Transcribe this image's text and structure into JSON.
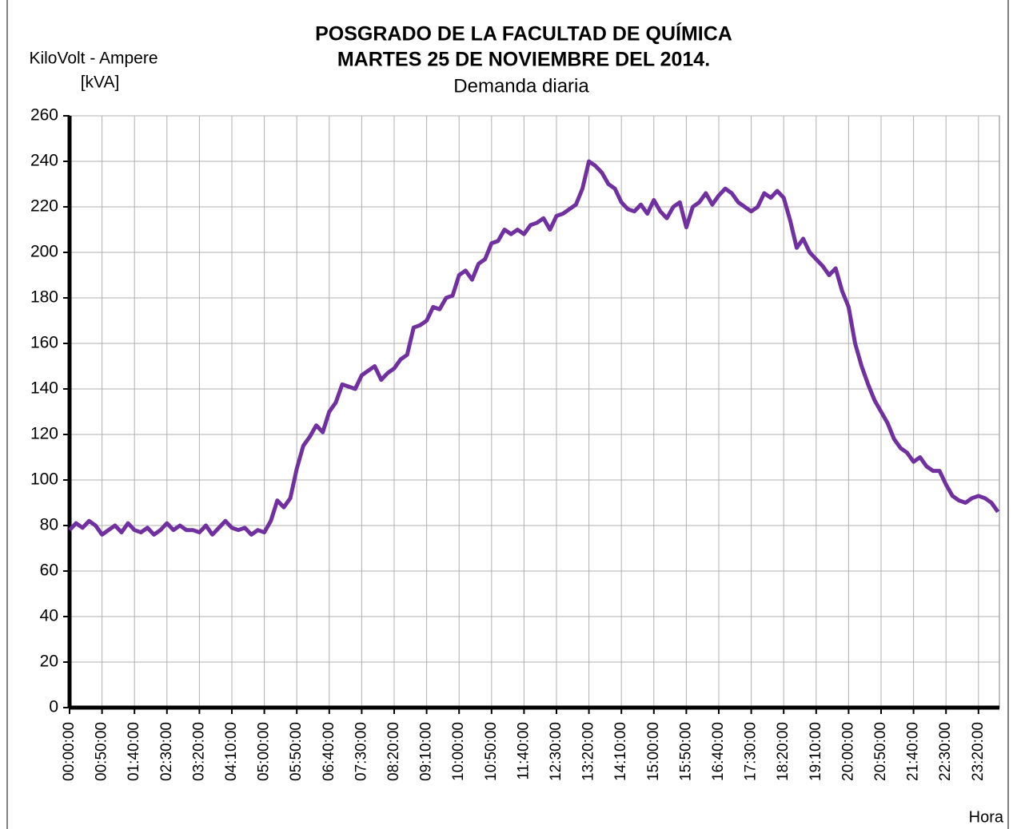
{
  "chart_data": {
    "type": "line",
    "title": "POSGRADO DE LA FACULTAD DE QUÍMICA",
    "title2": "MARTES 25 DE NOVIEMBRE DEL 2014.",
    "subtitle": "Demanda  diaria",
    "y_label": [
      "KiloVolt - Ampere",
      "[kVA]"
    ],
    "x_label": "Hora",
    "color": "#7030a0",
    "grid": true,
    "ylim": [
      0,
      260
    ],
    "yticks": [
      0,
      20,
      40,
      60,
      80,
      100,
      120,
      140,
      160,
      180,
      200,
      220,
      240,
      260
    ],
    "categories": [
      "00:00:00",
      null,
      null,
      null,
      null,
      "00:50:00",
      null,
      null,
      null,
      null,
      "01:40:00",
      null,
      null,
      null,
      null,
      "02:30:00",
      null,
      null,
      null,
      null,
      "03:20:00",
      null,
      null,
      null,
      null,
      "04:10:00",
      null,
      null,
      null,
      null,
      "05:00:00",
      null,
      null,
      null,
      null,
      "05:50:00",
      null,
      null,
      null,
      null,
      "06:40:00",
      null,
      null,
      null,
      null,
      "07:30:00",
      null,
      null,
      null,
      null,
      "08:20:00",
      null,
      null,
      null,
      null,
      "09:10:00",
      null,
      null,
      null,
      null,
      "10:00:00",
      null,
      null,
      null,
      null,
      "10:50:00",
      null,
      null,
      null,
      null,
      "11:40:00",
      null,
      null,
      null,
      null,
      "12:30:00",
      null,
      null,
      null,
      null,
      "13:20:00",
      null,
      null,
      null,
      null,
      "14:10:00",
      null,
      null,
      null,
      null,
      "15:00:00",
      null,
      null,
      null,
      null,
      "15:50:00",
      null,
      null,
      null,
      null,
      "16:40:00",
      null,
      null,
      null,
      null,
      "17:30:00",
      null,
      null,
      null,
      null,
      "18:20:00",
      null,
      null,
      null,
      null,
      "19:10:00",
      null,
      null,
      null,
      null,
      "20:00:00",
      null,
      null,
      null,
      null,
      "20:50:00",
      null,
      null,
      null,
      null,
      "21:40:00",
      null,
      null,
      null,
      null,
      "22:30:00",
      null,
      null,
      null,
      null,
      "23:20:00",
      null,
      null,
      null
    ],
    "values": [
      78,
      81,
      79,
      82,
      80,
      76,
      78,
      80,
      77,
      81,
      78,
      77,
      79,
      76,
      78,
      81,
      78,
      80,
      78,
      78,
      77,
      80,
      76,
      79,
      82,
      79,
      78,
      79,
      76,
      78,
      77,
      82,
      91,
      88,
      92,
      105,
      115,
      119,
      124,
      121,
      130,
      134,
      142,
      141,
      140,
      146,
      148,
      150,
      144,
      147,
      149,
      153,
      155,
      167,
      168,
      170,
      176,
      175,
      180,
      181,
      190,
      192,
      188,
      195,
      197,
      204,
      205,
      210,
      208,
      210,
      208,
      212,
      213,
      215,
      210,
      216,
      217,
      219,
      221,
      228,
      240,
      238,
      235,
      230,
      228,
      222,
      219,
      218,
      221,
      217,
      223,
      218,
      215,
      220,
      222,
      211,
      220,
      222,
      226,
      221,
      225,
      228,
      226,
      222,
      220,
      218,
      220,
      226,
      224,
      227,
      224,
      214,
      202,
      206,
      200,
      197,
      194,
      190,
      193,
      183,
      176,
      160,
      150,
      142,
      135,
      130,
      125,
      118,
      114,
      112,
      108,
      110,
      106,
      104,
      104,
      98,
      93,
      91,
      90,
      92,
      93,
      92,
      90,
      86
    ]
  }
}
